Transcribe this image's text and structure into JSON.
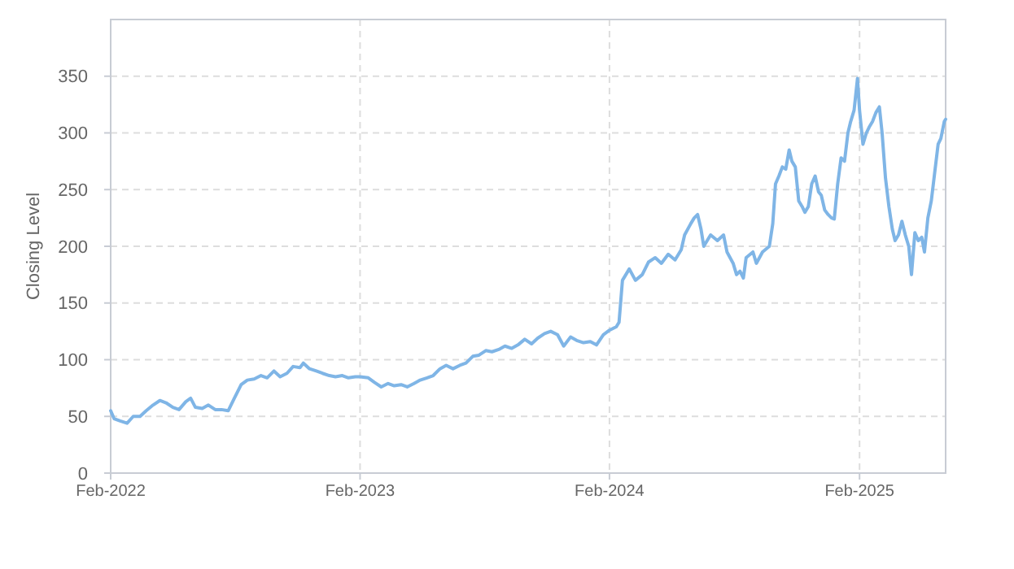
{
  "chart_data": {
    "type": "line",
    "ylabel": "Closing Level",
    "grid": true,
    "line_style": "solid",
    "marker": "none",
    "xlim": [
      "2022-02-01",
      "2025-06-07"
    ],
    "xticks": [
      {
        "value": "2022-02-01",
        "label": "Feb-2022"
      },
      {
        "value": "2023-02-01",
        "label": "Feb-2023"
      },
      {
        "value": "2024-02-01",
        "label": "Feb-2024"
      },
      {
        "value": "2025-02-01",
        "label": "Feb-2025"
      }
    ],
    "ylim": [
      0,
      400
    ],
    "yticks": [
      0,
      50,
      100,
      150,
      200,
      250,
      300,
      350
    ],
    "x": [
      "2022-02-01",
      "2022-02-06",
      "2022-02-15",
      "2022-02-25",
      "2022-03-06",
      "2022-03-16",
      "2022-03-25",
      "2022-04-04",
      "2022-04-14",
      "2022-04-23",
      "2022-05-03",
      "2022-05-12",
      "2022-05-22",
      "2022-05-29",
      "2022-06-05",
      "2022-06-15",
      "2022-06-24",
      "2022-07-04",
      "2022-07-13",
      "2022-07-23",
      "2022-08-01",
      "2022-08-11",
      "2022-08-20",
      "2022-08-30",
      "2022-09-09",
      "2022-09-18",
      "2022-09-28",
      "2022-10-07",
      "2022-10-17",
      "2022-10-26",
      "2022-11-05",
      "2022-11-10",
      "2022-11-19",
      "2022-11-29",
      "2022-12-08",
      "2022-12-18",
      "2022-12-27",
      "2023-01-06",
      "2023-01-15",
      "2023-01-25",
      "2023-02-01",
      "2023-02-13",
      "2023-02-22",
      "2023-03-04",
      "2023-03-14",
      "2023-03-23",
      "2023-04-02",
      "2023-04-11",
      "2023-04-21",
      "2023-04-30",
      "2023-05-10",
      "2023-05-19",
      "2023-05-29",
      "2023-06-07",
      "2023-06-17",
      "2023-06-27",
      "2023-07-06",
      "2023-07-16",
      "2023-07-25",
      "2023-08-04",
      "2023-08-13",
      "2023-08-23",
      "2023-09-01",
      "2023-09-11",
      "2023-09-20",
      "2023-09-30",
      "2023-10-10",
      "2023-10-19",
      "2023-10-29",
      "2023-11-07",
      "2023-11-17",
      "2023-11-26",
      "2023-12-06",
      "2023-12-15",
      "2023-12-25",
      "2024-01-04",
      "2024-01-13",
      "2024-01-23",
      "2024-02-01",
      "2024-02-11",
      "2024-02-15",
      "2024-02-20",
      "2024-03-01",
      "2024-03-10",
      "2024-03-20",
      "2024-03-29",
      "2024-04-08",
      "2024-04-17",
      "2024-04-27",
      "2024-05-07",
      "2024-05-16",
      "2024-05-21",
      "2024-05-30",
      "2024-06-04",
      "2024-06-09",
      "2024-06-14",
      "2024-06-18",
      "2024-06-28",
      "2024-07-08",
      "2024-07-17",
      "2024-07-22",
      "2024-07-31",
      "2024-08-05",
      "2024-08-10",
      "2024-08-15",
      "2024-08-19",
      "2024-08-29",
      "2024-09-03",
      "2024-09-12",
      "2024-09-22",
      "2024-09-27",
      "2024-10-01",
      "2024-10-06",
      "2024-10-11",
      "2024-10-16",
      "2024-10-21",
      "2024-10-25",
      "2024-10-30",
      "2024-11-04",
      "2024-11-09",
      "2024-11-13",
      "2024-11-18",
      "2024-11-23",
      "2024-11-28",
      "2024-12-03",
      "2024-12-07",
      "2024-12-12",
      "2024-12-17",
      "2024-12-22",
      "2024-12-26",
      "2024-12-31",
      "2025-01-05",
      "2025-01-10",
      "2025-01-15",
      "2025-01-19",
      "2025-01-24",
      "2025-01-29",
      "2025-02-01",
      "2025-02-06",
      "2025-02-11",
      "2025-02-15",
      "2025-02-20",
      "2025-02-25",
      "2025-03-02",
      "2025-03-06",
      "2025-03-11",
      "2025-03-16",
      "2025-03-21",
      "2025-03-25",
      "2025-03-30",
      "2025-04-04",
      "2025-04-09",
      "2025-04-14",
      "2025-04-18",
      "2025-04-23",
      "2025-04-28",
      "2025-05-03",
      "2025-05-07",
      "2025-05-12",
      "2025-05-17",
      "2025-05-22",
      "2025-05-27",
      "2025-05-31",
      "2025-06-05",
      "2025-06-07"
    ],
    "series": [
      {
        "color": "#7fb5e6",
        "values": [
          55,
          48,
          46,
          44,
          50,
          50,
          55,
          60,
          64,
          62,
          58,
          56,
          63,
          66,
          58,
          57,
          60,
          56,
          56,
          55,
          66,
          78,
          82,
          83,
          86,
          84,
          90,
          85,
          88,
          94,
          93,
          97,
          92,
          90,
          88,
          86,
          85,
          86,
          84,
          85,
          85,
          84,
          80,
          76,
          79,
          77,
          78,
          76,
          79,
          82,
          84,
          86,
          92,
          95,
          92,
          95,
          97,
          103,
          104,
          108,
          107,
          109,
          112,
          110,
          113,
          118,
          114,
          119,
          123,
          125,
          122,
          112,
          120,
          117,
          115,
          116,
          113,
          122,
          126,
          129,
          133,
          170,
          180,
          170,
          175,
          186,
          190,
          185,
          193,
          188,
          197,
          210,
          220,
          225,
          228,
          215,
          200,
          210,
          205,
          210,
          195,
          185,
          175,
          178,
          172,
          190,
          195,
          185,
          195,
          200,
          220,
          255,
          262,
          270,
          268,
          285,
          275,
          270,
          240,
          235,
          230,
          235,
          255,
          262,
          248,
          245,
          232,
          228,
          225,
          224,
          255,
          278,
          275,
          300,
          310,
          320,
          348,
          320,
          290,
          300,
          305,
          310,
          318,
          323,
          300,
          260,
          235,
          215,
          205,
          210,
          222,
          210,
          200,
          175,
          212,
          205,
          208,
          195,
          225,
          240,
          265,
          290,
          295,
          310,
          312
        ]
      }
    ]
  }
}
